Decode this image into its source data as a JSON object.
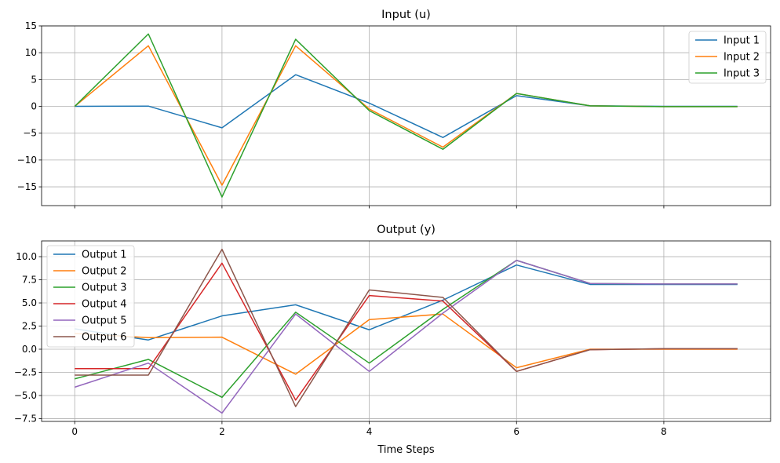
{
  "chart_data": [
    {
      "type": "line",
      "title": "Input (u)",
      "xlabel": "",
      "ylabel": "",
      "xlim": [
        -0.45,
        9.45
      ],
      "ylim": [
        -18.5,
        15.0
      ],
      "xticks": [
        0,
        2,
        4,
        6,
        8
      ],
      "yticks": [
        -15,
        -10,
        -5,
        0,
        5,
        10,
        15
      ],
      "xtick_labels": [
        "",
        "",
        "",
        "",
        ""
      ],
      "ytick_labels": [
        "−15",
        "−10",
        "−5",
        "0",
        "5",
        "10",
        "15"
      ],
      "grid": true,
      "legend_position": "top-right",
      "x": [
        0,
        1,
        2,
        3,
        4,
        5,
        6,
        7,
        8,
        9
      ],
      "series": [
        {
          "name": "Input 1",
          "color": "#1f77b4",
          "values": [
            0.0,
            0.05,
            -4.0,
            5.9,
            0.6,
            -5.8,
            2.0,
            0.1,
            0.0,
            0.0
          ]
        },
        {
          "name": "Input 2",
          "color": "#ff7f0e",
          "values": [
            0.0,
            11.3,
            -14.7,
            11.3,
            -0.5,
            -7.6,
            2.4,
            0.1,
            -0.05,
            -0.05
          ]
        },
        {
          "name": "Input 3",
          "color": "#2ca02c",
          "values": [
            0.0,
            13.5,
            -16.9,
            12.5,
            -0.8,
            -8.0,
            2.4,
            0.1,
            -0.05,
            -0.05
          ]
        }
      ]
    },
    {
      "type": "line",
      "title": "Output (y)",
      "xlabel": "Time Steps",
      "ylabel": "",
      "xlim": [
        -0.45,
        9.45
      ],
      "ylim": [
        -7.8,
        11.7
      ],
      "xticks": [
        0,
        2,
        4,
        6,
        8
      ],
      "yticks": [
        -7.5,
        -5.0,
        -2.5,
        0.0,
        2.5,
        5.0,
        7.5,
        10.0
      ],
      "xtick_labels": [
        "0",
        "2",
        "4",
        "6",
        "8"
      ],
      "ytick_labels": [
        "−7.5",
        "−5.0",
        "−2.5",
        "0.0",
        "2.5",
        "5.0",
        "7.5",
        "10.0"
      ],
      "grid": true,
      "legend_position": "top-left",
      "x": [
        0,
        1,
        2,
        3,
        4,
        5,
        6,
        7,
        8,
        9
      ],
      "series": [
        {
          "name": "Output 1",
          "color": "#1f77b4",
          "values": [
            2.2,
            1.0,
            3.6,
            4.8,
            2.1,
            5.3,
            9.1,
            7.0,
            7.0,
            7.0
          ]
        },
        {
          "name": "Output 2",
          "color": "#ff7f0e",
          "values": [
            1.7,
            1.25,
            1.3,
            -2.7,
            3.2,
            3.8,
            -2.0,
            0.0,
            0.0,
            0.0
          ]
        },
        {
          "name": "Output 3",
          "color": "#2ca02c",
          "values": [
            -3.2,
            -1.1,
            -5.2,
            4.0,
            -1.5,
            4.3,
            9.6,
            7.1,
            7.05,
            7.05
          ]
        },
        {
          "name": "Output 4",
          "color": "#d62728",
          "values": [
            -2.1,
            -2.1,
            9.3,
            -5.5,
            5.8,
            5.2,
            -2.4,
            -0.05,
            0.05,
            0.05
          ]
        },
        {
          "name": "Output 5",
          "color": "#9467bd",
          "values": [
            -4.1,
            -1.5,
            -6.9,
            3.8,
            -2.4,
            3.9,
            9.6,
            7.1,
            7.05,
            7.05
          ]
        },
        {
          "name": "Output 6",
          "color": "#8c564b",
          "values": [
            -2.8,
            -2.8,
            10.8,
            -6.2,
            6.4,
            5.6,
            -2.4,
            -0.05,
            0.05,
            0.05
          ]
        }
      ]
    }
  ]
}
